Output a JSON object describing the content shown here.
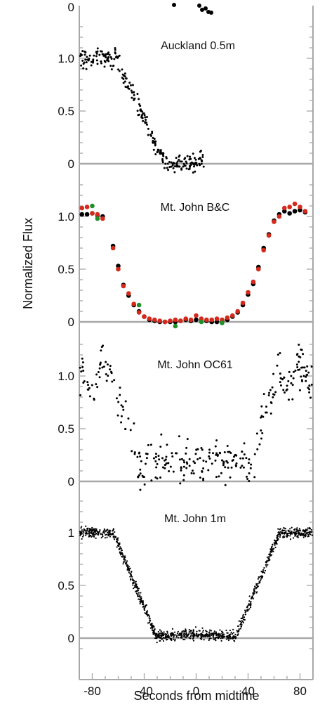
{
  "figure": {
    "ylabel": "Normalized Flux",
    "xlabel": "Seconds from midtime",
    "xlim": [
      -90,
      90
    ],
    "x_ticks": [
      -80,
      -40,
      0,
      40,
      80
    ]
  },
  "chart_data": [
    {
      "type": "scatter",
      "title": "Auckland 0.5m",
      "ylim": [
        0,
        1.35
      ],
      "y_ticks": [
        {
          "value": 0,
          "label": "0"
        },
        {
          "value": 0.5,
          "label": "0.5"
        },
        {
          "value": 1.0,
          "label": "1.0"
        }
      ],
      "visible_top_tick_label": "0",
      "model": "shape",
      "series": [
        {
          "color": "#000000",
          "x_range": [
            -90,
            6
          ],
          "noise": 0.045,
          "n": 260
        }
      ]
    },
    {
      "type": "scatter",
      "title": "Mt. John B&C",
      "ylim": [
        0,
        1.35
      ],
      "y_ticks": [
        {
          "value": 0,
          "label": "0"
        },
        {
          "value": 0.5,
          "label": "0.5"
        },
        {
          "value": 1.0,
          "label": "1.0"
        }
      ],
      "model": "points",
      "series": [
        {
          "color": "#000000",
          "x": [
            -88,
            -84,
            -80,
            -76,
            -72,
            -64,
            -60,
            -56,
            -52,
            -48,
            -44,
            -40,
            -36,
            -32,
            -28,
            -24,
            -20,
            -16,
            -12,
            -8,
            -4,
            0,
            4,
            8,
            12,
            16,
            20,
            24,
            28,
            32,
            36,
            40,
            44,
            48,
            52,
            56,
            60,
            64,
            68,
            72,
            76,
            80,
            84
          ],
          "y": [
            1.02,
            1.02,
            1.03,
            1.01,
            1.0,
            0.72,
            0.53,
            0.35,
            0.25,
            0.16,
            0.1,
            0.05,
            0.02,
            0.01,
            0.0,
            0.0,
            0.0,
            0.0,
            0.01,
            0.02,
            0.01,
            0.02,
            0.02,
            0.01,
            0.0,
            0.0,
            0.01,
            0.02,
            0.05,
            0.09,
            0.16,
            0.26,
            0.36,
            0.52,
            0.7,
            0.83,
            0.96,
            1.02,
            1.05,
            1.03,
            1.05,
            1.06,
            1.04
          ]
        },
        {
          "color": "#d42a1c",
          "x": [
            -88,
            -84,
            -80,
            -76,
            -72,
            -64,
            -60,
            -56,
            -52,
            -48,
            -44,
            -40,
            -36,
            -32,
            -28,
            -24,
            -20,
            -16,
            -12,
            -8,
            -4,
            0,
            4,
            8,
            12,
            16,
            20,
            24,
            28,
            32,
            36,
            40,
            44,
            48,
            52,
            56,
            60,
            64,
            68,
            72,
            76,
            80,
            84
          ],
          "y": [
            1.08,
            1.09,
            1.03,
            1.02,
            0.98,
            0.7,
            0.5,
            0.34,
            0.27,
            0.17,
            0.09,
            0.05,
            0.03,
            0.02,
            0.01,
            0.0,
            0.01,
            0.02,
            0.01,
            0.03,
            0.02,
            0.06,
            0.03,
            0.02,
            0.02,
            0.03,
            0.02,
            0.04,
            0.06,
            0.1,
            0.18,
            0.28,
            0.38,
            0.5,
            0.68,
            0.82,
            0.95,
            1.0,
            1.08,
            1.09,
            1.12,
            1.09,
            1.05
          ]
        },
        {
          "color": "#1f8f2a",
          "x": [
            -80,
            -76,
            -44,
            -16,
            4,
            20
          ],
          "y": [
            1.1,
            0.98,
            0.16,
            -0.04,
            0.0,
            -0.01
          ]
        }
      ]
    },
    {
      "type": "scatter",
      "title": "Mt. John OC61",
      "ylim": [
        0,
        1.35
      ],
      "y_ticks": [
        {
          "value": 0,
          "label": "0"
        },
        {
          "value": 0.5,
          "label": "0.5"
        },
        {
          "value": 1.0,
          "label": "1.0"
        }
      ],
      "model": "shape",
      "series": [
        {
          "color": "#000000",
          "x_range": [
            -90,
            90
          ],
          "noise": 0.1,
          "n": 310
        }
      ]
    },
    {
      "type": "scatter",
      "title": "Mt. John 1m",
      "ylim": [
        0,
        1.35
      ],
      "y_ticks": [
        {
          "value": 0,
          "label": "0"
        },
        {
          "value": 0.5,
          "label": "0.5"
        },
        {
          "value": 1.0,
          "label": "1"
        }
      ],
      "model": "shape",
      "series": [
        {
          "color": "#000000",
          "x_range": [
            -90,
            90
          ],
          "noise": 0.025,
          "n": 1100
        }
      ]
    }
  ]
}
